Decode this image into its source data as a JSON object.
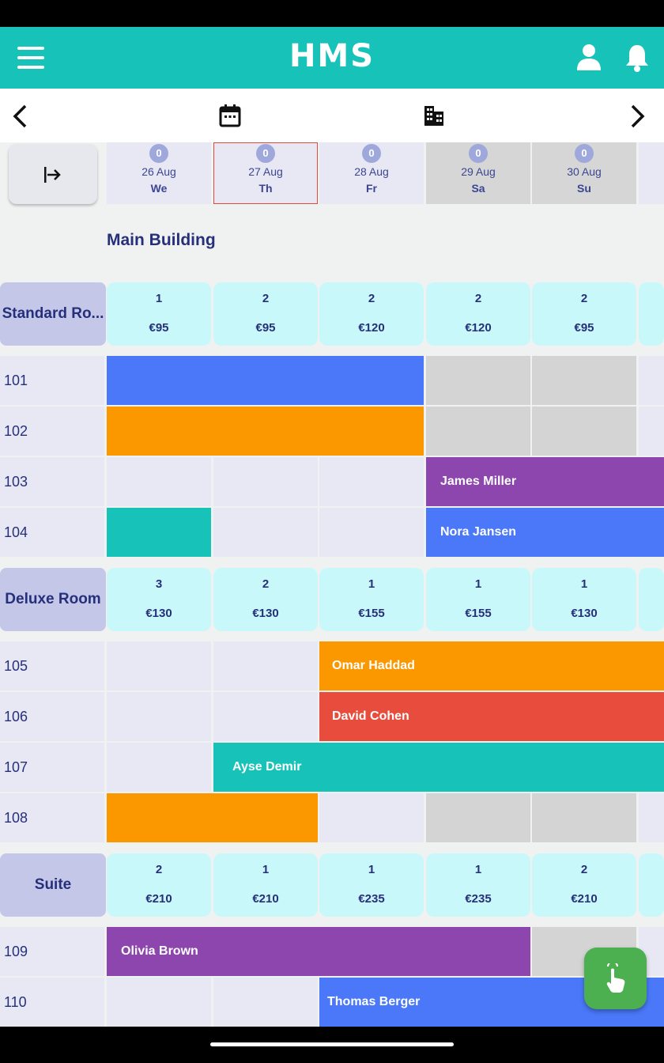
{
  "app": {
    "title": "HMS"
  },
  "dates": [
    {
      "count": "0",
      "date": "26 Aug",
      "day": "We",
      "weekend": false,
      "selected": false
    },
    {
      "count": "0",
      "date": "27 Aug",
      "day": "Th",
      "weekend": false,
      "selected": true
    },
    {
      "count": "0",
      "date": "28 Aug",
      "day": "Fr",
      "weekend": false,
      "selected": false
    },
    {
      "count": "0",
      "date": "29 Aug",
      "day": "Sa",
      "weekend": true,
      "selected": false
    },
    {
      "count": "0",
      "date": "30 Aug",
      "day": "Su",
      "weekend": true,
      "selected": false
    }
  ],
  "building": {
    "name": "Main Building"
  },
  "room_types": [
    {
      "name": "Standard Ro...",
      "availability": [
        {
          "count": "1",
          "price": "€95"
        },
        {
          "count": "2",
          "price": "€95"
        },
        {
          "count": "2",
          "price": "€120"
        },
        {
          "count": "2",
          "price": "€120"
        },
        {
          "count": "2",
          "price": "€95"
        }
      ],
      "rooms": [
        {
          "number": "101",
          "bookings": [
            {
              "start": 0,
              "span": 3,
              "guest": "",
              "color": "#4a78f8"
            }
          ]
        },
        {
          "number": "102",
          "bookings": [
            {
              "start": 0,
              "span": 3,
              "guest": "",
              "color": "#fb9800"
            }
          ]
        },
        {
          "number": "103",
          "bookings": [
            {
              "start": 3,
              "span": 3,
              "guest": "James Miller",
              "color": "#8d46ae"
            }
          ]
        },
        {
          "number": "104",
          "bookings": [
            {
              "start": 0,
              "span": 1,
              "guest": "",
              "color": "#17c2b8"
            },
            {
              "start": 3,
              "span": 3,
              "guest": "Nora Jansen",
              "color": "#4a78f8"
            }
          ]
        }
      ]
    },
    {
      "name": "Deluxe Room",
      "availability": [
        {
          "count": "3",
          "price": "€130"
        },
        {
          "count": "2",
          "price": "€130"
        },
        {
          "count": "1",
          "price": "€155"
        },
        {
          "count": "1",
          "price": "€155"
        },
        {
          "count": "1",
          "price": "€130"
        }
      ],
      "rooms": [
        {
          "number": "105",
          "bookings": [
            {
              "start": 2,
              "span": 4,
              "guest": "Omar Haddad",
              "color": "#fb9800"
            }
          ]
        },
        {
          "number": "106",
          "bookings": [
            {
              "start": 2,
              "span": 4,
              "guest": "David Cohen",
              "color": "#e74c3c"
            }
          ]
        },
        {
          "number": "107",
          "bookings": [
            {
              "start": 1,
              "span": 5,
              "guest": "Ayse Demir",
              "color": "#17c2b8"
            }
          ]
        },
        {
          "number": "108",
          "bookings": [
            {
              "start": 0,
              "span": 2,
              "guest": "",
              "color": "#fb9800"
            }
          ]
        }
      ]
    },
    {
      "name": "Suite",
      "availability": [
        {
          "count": "2",
          "price": "€210"
        },
        {
          "count": "1",
          "price": "€210"
        },
        {
          "count": "1",
          "price": "€235"
        },
        {
          "count": "1",
          "price": "€235"
        },
        {
          "count": "2",
          "price": "€210"
        }
      ],
      "rooms": [
        {
          "number": "109",
          "bookings": [
            {
              "start": 0,
              "span": 4,
              "guest": "Olivia Brown",
              "color": "#8d46ae"
            }
          ]
        },
        {
          "number": "110",
          "bookings": [
            {
              "start": 2,
              "span": 3,
              "guest": "Thomas Berger",
              "color": "#4a78f8"
            }
          ]
        }
      ]
    }
  ],
  "icons": {
    "menu": "menu-icon",
    "profile": "person-icon",
    "notifications": "bell-icon",
    "prev": "chevron-left-icon",
    "calendar": "calendar-icon",
    "building": "building-icon",
    "next": "chevron-right-icon",
    "toggle": "arrow-right-to-bar-icon",
    "fab": "tap-hand-icon"
  }
}
